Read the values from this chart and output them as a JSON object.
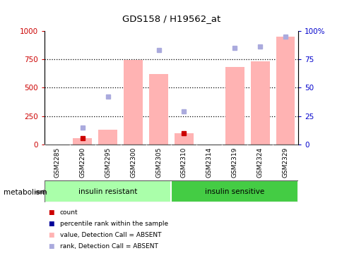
{
  "title": "GDS158 / H19562_at",
  "samples": [
    "GSM2285",
    "GSM2290",
    "GSM2295",
    "GSM2300",
    "GSM2305",
    "GSM2310",
    "GSM2314",
    "GSM2319",
    "GSM2324",
    "GSM2329"
  ],
  "bar_values": [
    0,
    55,
    130,
    745,
    620,
    100,
    0,
    680,
    730,
    950
  ],
  "rank_dots_right_axis": [
    null,
    15,
    42,
    null,
    83,
    29,
    null,
    85,
    86,
    95
  ],
  "count_dots_left_axis": [
    null,
    55,
    null,
    null,
    null,
    100,
    null,
    null,
    null,
    null
  ],
  "bar_color": "#FFB3B3",
  "rank_dot_color": "#AAAADD",
  "count_dot_color": "#CC0000",
  "ylim_left": [
    0,
    1000
  ],
  "ylim_right": [
    0,
    100
  ],
  "yticks_left": [
    0,
    250,
    500,
    750,
    1000
  ],
  "yticks_right": [
    0,
    25,
    50,
    75,
    100
  ],
  "ytick_labels_left": [
    "0",
    "250",
    "500",
    "750",
    "1000"
  ],
  "ytick_labels_right": [
    "0",
    "25",
    "50",
    "75",
    "100%"
  ],
  "left_tick_color": "#CC0000",
  "right_tick_color": "#0000CC",
  "groups": [
    {
      "label": "insulin resistant",
      "start": 0,
      "end": 5,
      "color": "#AAFFAA"
    },
    {
      "label": "insulin sensitive",
      "start": 5,
      "end": 10,
      "color": "#44CC44"
    }
  ],
  "metabolism_label": "metabolism",
  "legend_items": [
    {
      "color": "#CC0000",
      "label": "count"
    },
    {
      "color": "#000099",
      "label": "percentile rank within the sample"
    },
    {
      "color": "#FFB3B3",
      "label": "value, Detection Call = ABSENT"
    },
    {
      "color": "#AAAADD",
      "label": "rank, Detection Call = ABSENT"
    }
  ],
  "background_color": "#FFFFFF",
  "label_box_color": "#D0D0D0",
  "label_box_border": "#888888"
}
